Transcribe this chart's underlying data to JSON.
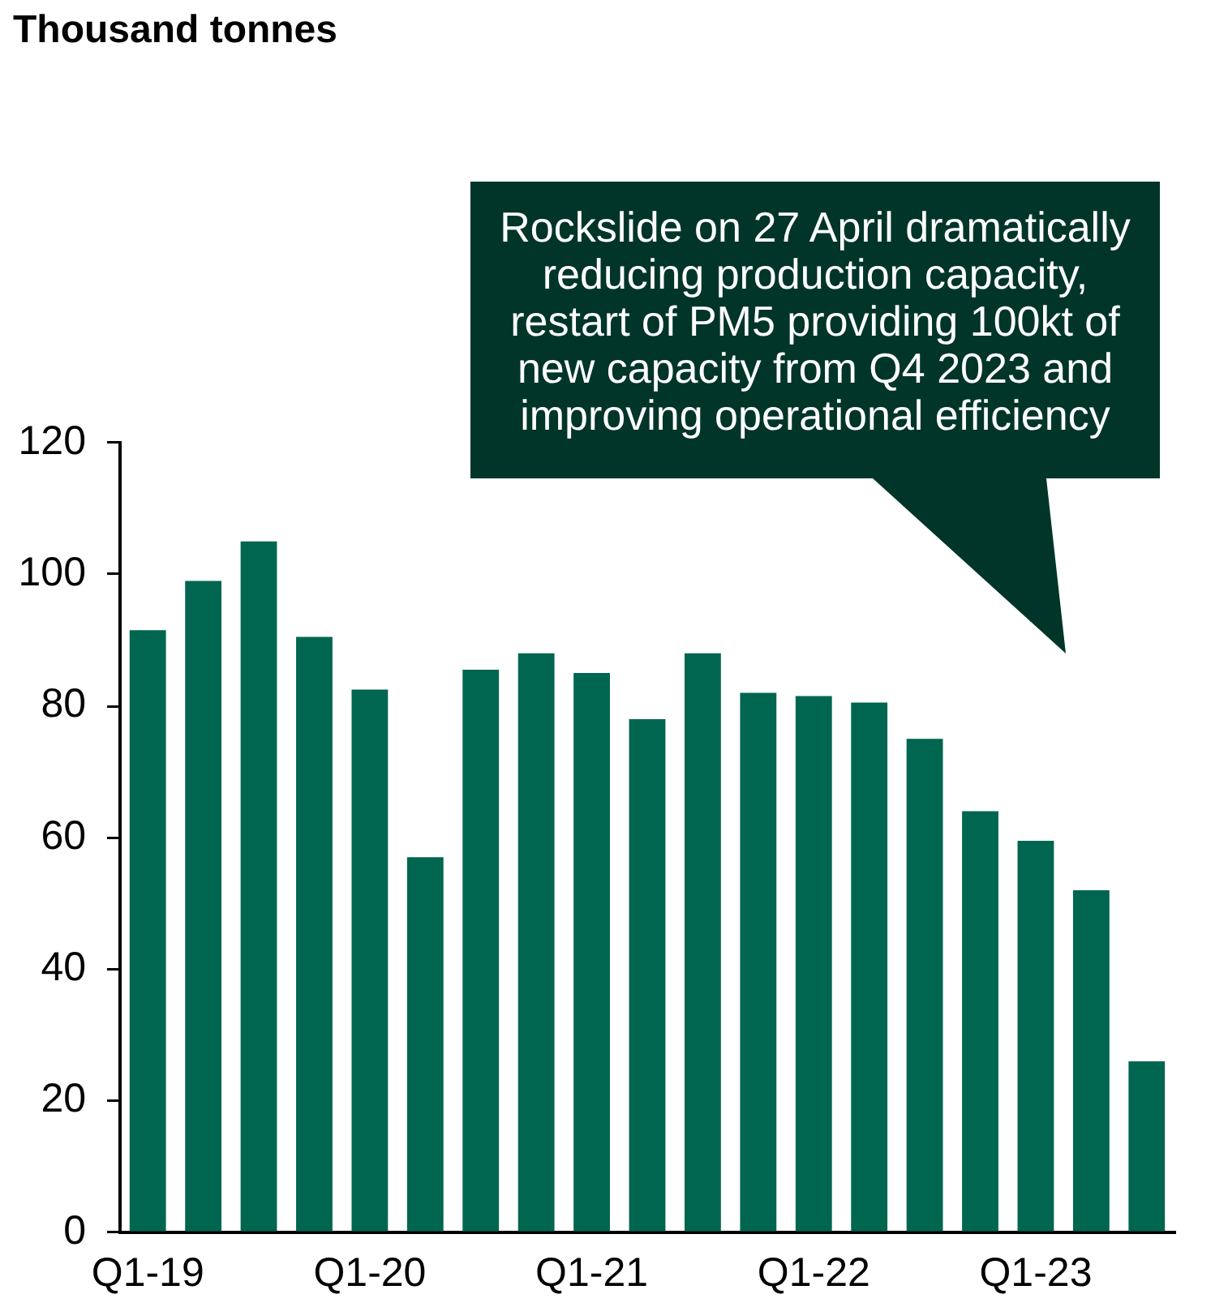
{
  "chart_data": {
    "type": "bar",
    "title": "Thousand tonnes",
    "annotations": [
      "Rockslide on 27 April dramatically reducing production capacity, restart of PM5 providing 100kt of new capacity from Q4 2023 and improving operational efficiency"
    ],
    "categories": [
      "Q1-19",
      null,
      null,
      null,
      "Q1-20",
      null,
      null,
      null,
      "Q1-21",
      null,
      null,
      null,
      "Q1-22",
      null,
      null,
      null,
      "Q1-23",
      null,
      null
    ],
    "values": [
      91.5,
      99,
      105,
      90.5,
      82.5,
      57,
      85.5,
      88,
      85,
      78,
      88,
      82,
      81.5,
      80.5,
      75,
      64,
      59.5,
      52,
      26
    ],
    "color": "#00664f",
    "ylim": [
      0,
      120
    ],
    "yticks": [
      0,
      20,
      40,
      60,
      80,
      100,
      120
    ],
    "grid": false
  }
}
